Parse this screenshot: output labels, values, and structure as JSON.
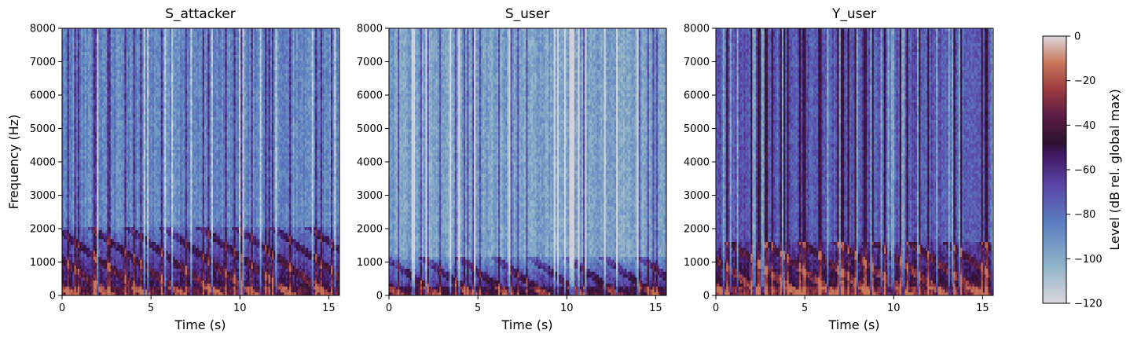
{
  "chart_data": [
    {
      "type": "heatmap",
      "title": "S_attacker",
      "xlabel": "Time (s)",
      "ylabel": "Frequency (Hz)",
      "xlim": [
        0,
        15.6
      ],
      "ylim": [
        0,
        8000
      ],
      "xticks": [
        0,
        5,
        10,
        15
      ],
      "yticks": [
        0,
        1000,
        2000,
        3000,
        4000,
        5000,
        6000,
        7000,
        8000
      ],
      "grid": false,
      "character": "speech with bright harmonics below ~2 kHz, blue-white high band"
    },
    {
      "type": "heatmap",
      "title": "S_user",
      "xlabel": "Time (s)",
      "ylabel": "",
      "xlim": [
        0,
        15.6
      ],
      "ylim": [
        0,
        8000
      ],
      "xticks": [
        0,
        5,
        10,
        15
      ],
      "yticks": [
        0,
        1000,
        2000,
        3000,
        4000,
        5000,
        6000,
        7000,
        8000
      ],
      "grid": false,
      "character": "speech with harmonics below ~1 kHz, pale near-silent gaps"
    },
    {
      "type": "heatmap",
      "title": "Y_user",
      "xlabel": "Time (s)",
      "ylabel": "",
      "xlim": [
        0,
        15.6
      ],
      "ylim": [
        0,
        8000
      ],
      "xticks": [
        0,
        5,
        10,
        15
      ],
      "yticks": [
        0,
        1000,
        2000,
        3000,
        4000,
        5000,
        6000,
        7000,
        8000
      ],
      "grid": false,
      "character": "denser noise floor, darker purple, harmonics below ~1.5 kHz"
    }
  ],
  "colorbar": {
    "label": "Level (dB rel. global max)",
    "range": [
      -120,
      0
    ],
    "ticks": [
      0,
      -20,
      -40,
      -60,
      -80,
      -100,
      -120
    ],
    "colormap": "twilight",
    "stops": [
      [
        "#dcd7dd",
        0.0
      ],
      [
        "#8fb3c8",
        0.14
      ],
      [
        "#5b7fc0",
        0.3
      ],
      [
        "#5a46a8",
        0.44
      ],
      [
        "#3e1760",
        0.56
      ],
      [
        "#2d1331",
        0.6
      ],
      [
        "#5a1c44",
        0.7
      ],
      [
        "#9a3b40",
        0.8
      ],
      [
        "#c8765a",
        0.9
      ],
      [
        "#dcd7dd",
        1.0
      ]
    ]
  }
}
